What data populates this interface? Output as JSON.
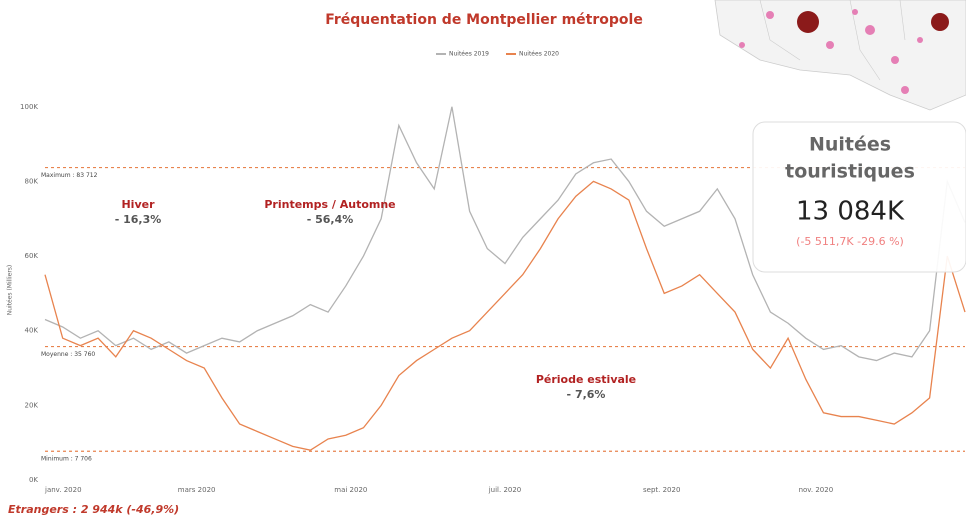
{
  "chart_data": {
    "type": "line",
    "title": "Fréquentation de Montpellier métropole",
    "y_label": "Nuitées (Milliers)",
    "x": [
      0,
      7,
      14,
      21,
      28,
      35,
      42,
      49,
      56,
      63,
      70,
      77,
      84,
      91,
      98,
      105,
      112,
      119,
      126,
      133,
      140,
      147,
      154,
      161,
      168,
      175,
      182,
      189,
      196,
      203,
      210,
      217,
      224,
      231,
      238,
      245,
      252,
      259,
      266,
      273,
      280,
      287,
      294,
      301,
      308,
      315,
      322,
      329,
      336,
      343,
      350,
      357,
      364
    ],
    "xlim": [
      0,
      364
    ],
    "xticks": [
      {
        "value": 0,
        "label": "janv. 2020"
      },
      {
        "value": 60,
        "label": "mars 2020"
      },
      {
        "value": 121,
        "label": "mai 2020"
      },
      {
        "value": 182,
        "label": "juil. 2020"
      },
      {
        "value": 244,
        "label": "sept. 2020"
      },
      {
        "value": 305,
        "label": "nov. 2020"
      }
    ],
    "ylim": [
      0,
      112000
    ],
    "yticks": [
      {
        "value": 0,
        "label": "0K"
      },
      {
        "value": 20000,
        "label": "20K"
      },
      {
        "value": 40000,
        "label": "40K"
      },
      {
        "value": 60000,
        "label": "60K"
      },
      {
        "value": 80000,
        "label": "80K"
      },
      {
        "value": 100000,
        "label": "100K"
      }
    ],
    "series": [
      {
        "name": "Nuitées 2019",
        "color": "#b3b3b3",
        "values": [
          43000,
          41000,
          38000,
          40000,
          36000,
          38000,
          35000,
          37000,
          34000,
          36000,
          38000,
          37000,
          40000,
          42000,
          44000,
          47000,
          45000,
          52000,
          60000,
          70000,
          95000,
          85000,
          78000,
          100000,
          72000,
          62000,
          58000,
          65000,
          70000,
          75000,
          82000,
          85000,
          86000,
          80000,
          72000,
          68000,
          70000,
          72000,
          78000,
          70000,
          55000,
          45000,
          42000,
          38000,
          35000,
          36000,
          33000,
          32000,
          34000,
          33000,
          40000,
          80000,
          69000
        ]
      },
      {
        "name": "Nuitées 2020",
        "color": "#e8834e",
        "values": [
          55000,
          38000,
          36000,
          38000,
          33000,
          40000,
          38000,
          35000,
          32000,
          30000,
          22000,
          15000,
          13000,
          11000,
          9000,
          8000,
          11000,
          12000,
          14000,
          20000,
          28000,
          32000,
          35000,
          38000,
          40000,
          45000,
          50000,
          55000,
          62000,
          70000,
          76000,
          80000,
          78000,
          75000,
          62000,
          50000,
          52000,
          55000,
          50000,
          45000,
          35000,
          30000,
          38000,
          27000,
          18000,
          17000,
          17000,
          16000,
          15000,
          18000,
          22000,
          60000,
          45000
        ]
      }
    ],
    "reference_lines": [
      {
        "label": "Maximum : 83 712",
        "value": 83712
      },
      {
        "label": "Moyenne : 35 760",
        "value": 35760
      },
      {
        "label": "Minimum : 7 706",
        "value": 7706
      }
    ],
    "annotations": [
      {
        "title": "Hiver",
        "text": "- 16,3%"
      },
      {
        "title": "Printemps / Automne",
        "text": "- 56,4%"
      },
      {
        "title": "Période estivale",
        "text": "- 7,6%"
      }
    ],
    "card": {
      "title_line1": "Nuitées",
      "title_line2": "touristiques",
      "value": "13 084K",
      "change": "(-5 511,7K -29.6 %)"
    },
    "footer": "Etrangers : 2 944k (-46,9%)"
  }
}
